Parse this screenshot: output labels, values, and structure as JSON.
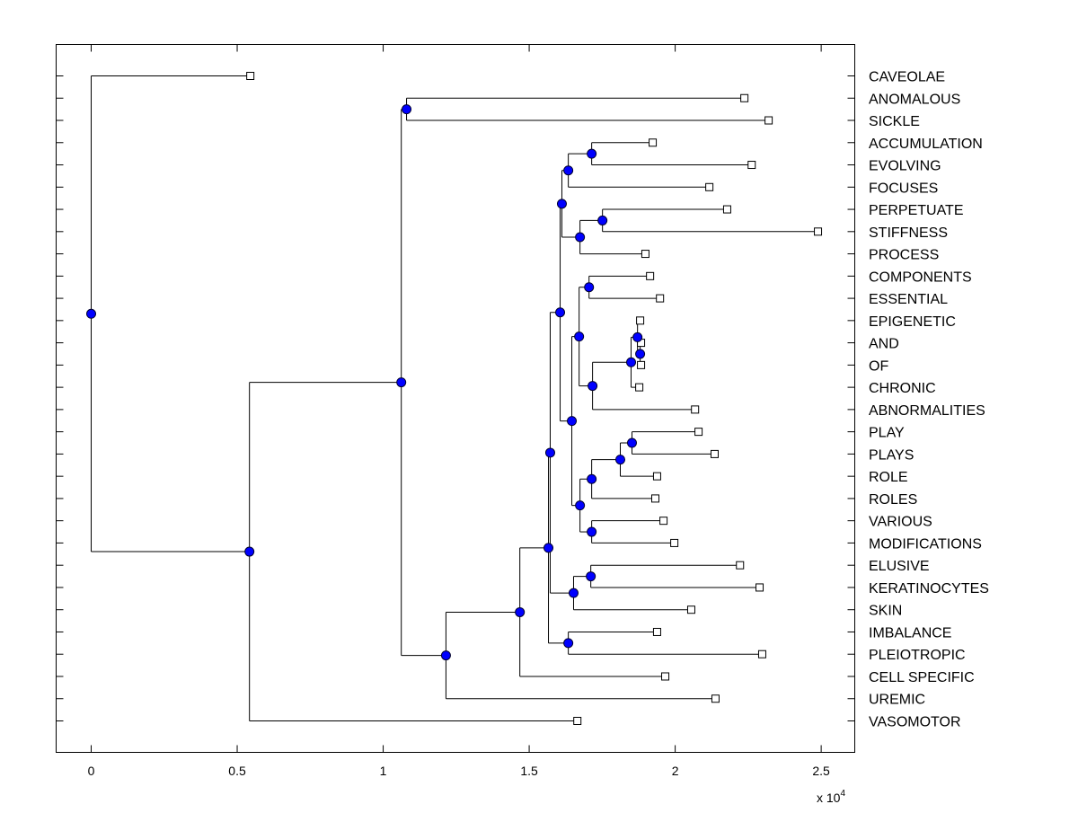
{
  "chart_data": {
    "type": "dendrogram",
    "orientation": "left-to-right",
    "xlim": [
      -0.12,
      2.615
    ],
    "x_ticks": [
      "0",
      "0.5",
      "1",
      "1.5",
      "2",
      "2.5"
    ],
    "x_tick_values": [
      0,
      0.5,
      1,
      1.5,
      2,
      2.5
    ],
    "x_multiplier": "x 10",
    "x_multiplier_exponent": "4",
    "grid": false,
    "colors": {
      "node": "#0000ff",
      "leaf": "#ffffff",
      "line": "#000000"
    },
    "leaf_order": [
      "CAVEOLAE",
      "ANOMALOUS",
      "SICKLE",
      "ACCUMULATION",
      "EVOLVING",
      "FOCUSES",
      "PERPETUATE",
      "STIFFNESS",
      "PROCESS",
      "COMPONENTS",
      "ESSENTIAL",
      "EPIGENETIC",
      "AND",
      "OF",
      "CHRONIC",
      "ABNORMALITIES",
      "PLAY",
      "PLAYS",
      "ROLE",
      "ROLES",
      "VARIOUS",
      "MODIFICATIONS",
      "ELUSIVE",
      "KERATINOCYTES",
      "SKIN",
      "IMBALANCE",
      "PLEIOTROPIC",
      "CELL SPECIFIC",
      "UREMIC",
      "VASOMOTOR"
    ],
    "tree": {
      "h": 0,
      "c": [
        {
          "label": "CAVEOLAE",
          "h": 0.545
        },
        {
          "h": 0.542,
          "c": [
            {
              "h": 1.062,
              "c": [
                {
                  "h": 1.08,
                  "c": [
                    {
                      "label": "ANOMALOUS",
                      "h": 2.237
                    },
                    {
                      "label": "SICKLE",
                      "h": 2.32
                    }
                  ]
                },
                {
                  "h": 1.215,
                  "c": [
                    {
                      "h": 1.468,
                      "c": [
                        {
                          "h": 1.566,
                          "c": [
                            {
                              "h": 1.572,
                              "c": [
                                {
                                  "h": 1.606,
                                  "c": [
                                    {
                                      "h": 1.612,
                                      "c": [
                                        {
                                          "h": 1.634,
                                          "c": [
                                            {
                                              "h": 1.714,
                                              "c": [
                                                {
                                                  "label": "ACCUMULATION",
                                                  "h": 1.923
                                                },
                                                {
                                                  "label": "EVOLVING",
                                                  "h": 2.262
                                                }
                                              ]
                                            },
                                            {
                                              "label": "FOCUSES",
                                              "h": 2.117
                                            }
                                          ]
                                        },
                                        {
                                          "h": 1.674,
                                          "c": [
                                            {
                                              "h": 1.751,
                                              "c": [
                                                {
                                                  "label": "PERPETUATE",
                                                  "h": 2.178
                                                },
                                                {
                                                  "label": "STIFFNESS",
                                                  "h": 2.489
                                                }
                                              ]
                                            },
                                            {
                                              "label": "PROCESS",
                                              "h": 1.898
                                            }
                                          ]
                                        }
                                      ]
                                    },
                                    {
                                      "h": 1.646,
                                      "c": [
                                        {
                                          "h": 1.671,
                                          "c": [
                                            {
                                              "h": 1.705,
                                              "c": [
                                                {
                                                  "label": "COMPONENTS",
                                                  "h": 1.914
                                                },
                                                {
                                                  "label": "ESSENTIAL",
                                                  "h": 1.948
                                                }
                                              ]
                                            },
                                            {
                                              "h": 1.717,
                                              "c": [
                                                {
                                                  "h": 1.849,
                                                  "c": [
                                                    {
                                                      "h": 1.871,
                                                      "c": [
                                                        {
                                                          "label": "EPIGENETIC",
                                                          "h": 1.88
                                                        },
                                                        {
                                                          "h": 1.88,
                                                          "c": [
                                                            {
                                                              "label": "AND",
                                                              "h": 1.883
                                                            },
                                                            {
                                                              "label": "OF",
                                                              "h": 1.883
                                                            }
                                                          ]
                                                        }
                                                      ]
                                                    },
                                                    {
                                                      "label": "CHRONIC",
                                                      "h": 1.877
                                                    }
                                                  ]
                                                },
                                                {
                                                  "label": "ABNORMALITIES",
                                                  "h": 2.068
                                                }
                                              ]
                                            }
                                          ]
                                        },
                                        {
                                          "h": 1.674,
                                          "c": [
                                            {
                                              "h": 1.714,
                                              "c": [
                                                {
                                                  "h": 1.812,
                                                  "c": [
                                                    {
                                                      "h": 1.852,
                                                      "c": [
                                                        {
                                                          "label": "PLAY",
                                                          "h": 2.08
                                                        },
                                                        {
                                                          "label": "PLAYS",
                                                          "h": 2.135
                                                        }
                                                      ]
                                                    },
                                                    {
                                                      "label": "ROLE",
                                                      "h": 1.938
                                                    }
                                                  ]
                                                },
                                                {
                                                  "label": "ROLES",
                                                  "h": 1.932
                                                }
                                              ]
                                            },
                                            {
                                              "h": 1.714,
                                              "c": [
                                                {
                                                  "label": "VARIOUS",
                                                  "h": 1.96
                                                },
                                                {
                                                  "label": "MODIFICATIONS",
                                                  "h": 1.997
                                                }
                                              ]
                                            }
                                          ]
                                        }
                                      ]
                                    }
                                  ]
                                },
                                {
                                  "h": 1.652,
                                  "c": [
                                    {
                                      "h": 1.711,
                                      "c": [
                                        {
                                          "label": "ELUSIVE",
                                          "h": 2.222
                                        },
                                        {
                                          "label": "KERATINOCYTES",
                                          "h": 2.289
                                        }
                                      ]
                                    },
                                    {
                                      "label": "SKIN",
                                      "h": 2.055
                                    }
                                  ]
                                }
                              ]
                            },
                            {
                              "h": 1.634,
                              "c": [
                                {
                                  "label": "IMBALANCE",
                                  "h": 1.938
                                },
                                {
                                  "label": "PLEIOTROPIC",
                                  "h": 2.298
                                }
                              ]
                            }
                          ]
                        },
                        {
                          "label": "CELL SPECIFIC",
                          "h": 1.966
                        }
                      ]
                    },
                    {
                      "label": "UREMIC",
                      "h": 2.138
                    }
                  ]
                }
              ]
            },
            {
              "label": "VASOMOTOR",
              "h": 1.665
            }
          ]
        }
      ]
    }
  }
}
